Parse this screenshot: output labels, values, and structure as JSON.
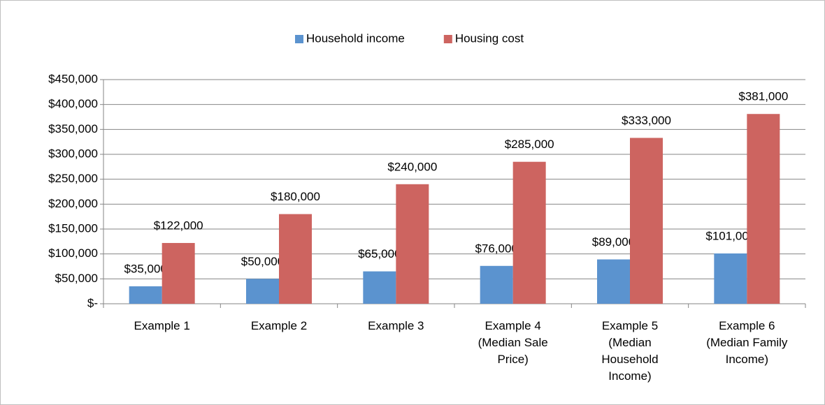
{
  "chart_data": {
    "type": "bar",
    "categories": [
      "Example 1",
      "Example 2",
      "Example 3",
      "Example 4 (Median Sale Price)",
      "Example 5 (Median Household Income)",
      "Example 6 (Median Family Income)"
    ],
    "series": [
      {
        "name": "Household income",
        "color": "#5b93cf",
        "values": [
          35000,
          50000,
          65000,
          76000,
          89000,
          101000
        ],
        "value_labels": [
          "$35,000",
          "$50,000",
          "$65,000",
          "$76,000",
          "$89,000",
          "$101,000"
        ]
      },
      {
        "name": "Housing cost",
        "color": "#cd6460",
        "values": [
          122000,
          180000,
          240000,
          285000,
          333000,
          381000
        ],
        "value_labels": [
          "$122,000",
          "$180,000",
          "$240,000",
          "$285,000",
          "$333,000",
          "$381,000"
        ]
      }
    ],
    "ylim": [
      0,
      450000
    ],
    "yticks": [
      {
        "value": 0,
        "label": "$-"
      },
      {
        "value": 50000,
        "label": "$50,000"
      },
      {
        "value": 100000,
        "label": "$100,000"
      },
      {
        "value": 150000,
        "label": "$150,000"
      },
      {
        "value": 200000,
        "label": "$200,000"
      },
      {
        "value": 250000,
        "label": "$250,000"
      },
      {
        "value": 300000,
        "label": "$300,000"
      },
      {
        "value": 350000,
        "label": "$350,000"
      },
      {
        "value": 400000,
        "label": "$400,000"
      },
      {
        "value": 450000,
        "label": "$450,000"
      }
    ],
    "grid": true,
    "legend": "top"
  }
}
